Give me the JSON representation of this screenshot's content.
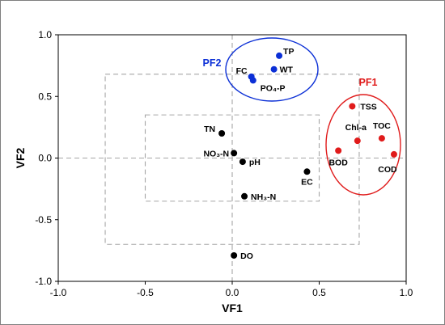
{
  "chart_data": {
    "type": "scatter",
    "xlabel": "VF1",
    "ylabel": "VF2",
    "xlim": [
      -1.0,
      1.0
    ],
    "ylim": [
      -1.0,
      1.0
    ],
    "xticks": [
      "-1.0",
      "-0.5",
      "0.0",
      "0.5",
      "1.0"
    ],
    "yticks": [
      "1.0",
      "0.5",
      "0.0",
      "-0.5",
      "-1.0"
    ],
    "grid": false,
    "legend": "none",
    "colors": {
      "black": "#000000",
      "blue": "#0b2fd6",
      "red": "#e01b1b",
      "dash": "#a6a6a6"
    },
    "reference_boxes": [
      {
        "x": [
          -0.5,
          0.5
        ],
        "y": [
          -0.35,
          0.35
        ]
      },
      {
        "x": [
          -0.73,
          0.73
        ],
        "y": [
          -0.7,
          0.68
        ]
      }
    ],
    "groups": [
      {
        "name": "PF2",
        "color": "#0b2fd6"
      },
      {
        "name": "PF1",
        "color": "#e01b1b"
      }
    ],
    "points": [
      {
        "label": "TP",
        "x": 0.27,
        "y": 0.83,
        "group": "PF2"
      },
      {
        "label": "WT",
        "x": 0.24,
        "y": 0.72,
        "group": "PF2"
      },
      {
        "label": "FC",
        "x": 0.11,
        "y": 0.66,
        "group": "PF2"
      },
      {
        "label": "PO₄-P",
        "x": 0.12,
        "y": 0.63,
        "group": "PF2"
      },
      {
        "label": "TSS",
        "x": 0.69,
        "y": 0.42,
        "group": "PF1"
      },
      {
        "label": "TOC",
        "x": 0.86,
        "y": 0.16,
        "group": "PF1"
      },
      {
        "label": "Chl-a",
        "x": 0.72,
        "y": 0.14,
        "group": "PF1"
      },
      {
        "label": "BOD",
        "x": 0.61,
        "y": 0.06,
        "group": "PF1"
      },
      {
        "label": "COD",
        "x": 0.93,
        "y": 0.03,
        "group": "PF1"
      },
      {
        "label": "TN",
        "x": -0.06,
        "y": 0.2,
        "group": ""
      },
      {
        "label": "NO₃-N",
        "x": 0.01,
        "y": 0.04,
        "group": ""
      },
      {
        "label": "pH",
        "x": 0.06,
        "y": -0.03,
        "group": ""
      },
      {
        "label": "EC",
        "x": 0.43,
        "y": -0.11,
        "group": ""
      },
      {
        "label": "NH₃-N",
        "x": 0.07,
        "y": -0.31,
        "group": ""
      },
      {
        "label": "DO",
        "x": 0.01,
        "y": -0.79,
        "group": ""
      }
    ]
  }
}
